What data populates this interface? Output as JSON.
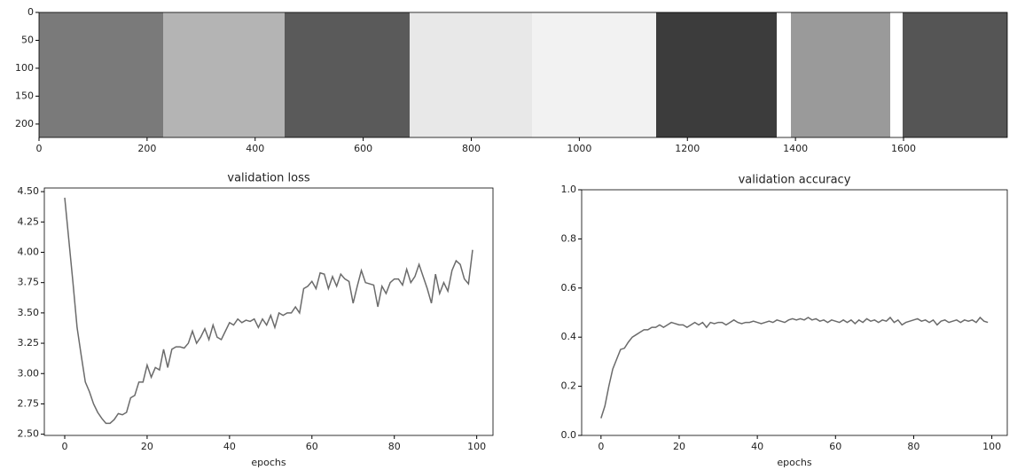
{
  "chart_data": [
    {
      "type": "image",
      "xlim": [
        0,
        1792
      ],
      "ylim": [
        224,
        0
      ],
      "xticks": [
        0,
        200,
        400,
        600,
        800,
        1000,
        1200,
        1400,
        1600
      ],
      "yticks": [
        0,
        50,
        100,
        150,
        200
      ]
    },
    {
      "type": "line",
      "title": "validation loss",
      "xlabel": "epochs",
      "color": "#6b6b6b",
      "x": [
        0,
        1,
        2,
        3,
        4,
        5,
        6,
        7,
        8,
        9,
        10,
        11,
        12,
        13,
        14,
        15,
        16,
        17,
        18,
        19,
        20,
        21,
        22,
        23,
        24,
        25,
        26,
        27,
        28,
        29,
        30,
        31,
        32,
        33,
        34,
        35,
        36,
        37,
        38,
        39,
        40,
        41,
        42,
        43,
        44,
        45,
        46,
        47,
        48,
        49,
        50,
        51,
        52,
        53,
        54,
        55,
        56,
        57,
        58,
        59,
        60,
        61,
        62,
        63,
        64,
        65,
        66,
        67,
        68,
        69,
        70,
        71,
        72,
        73,
        74,
        75,
        76,
        77,
        78,
        79,
        80,
        81,
        82,
        83,
        84,
        85,
        86,
        87,
        88,
        89,
        90,
        91,
        92,
        93,
        94,
        95,
        96,
        97,
        98,
        99
      ],
      "values": [
        4.45,
        4.1,
        3.75,
        3.38,
        3.15,
        2.93,
        2.85,
        2.75,
        2.68,
        2.63,
        2.59,
        2.59,
        2.62,
        2.67,
        2.66,
        2.68,
        2.8,
        2.82,
        2.93,
        2.93,
        3.07,
        2.97,
        3.05,
        3.03,
        3.2,
        3.05,
        3.2,
        3.22,
        3.22,
        3.21,
        3.25,
        3.35,
        3.25,
        3.3,
        3.37,
        3.28,
        3.4,
        3.3,
        3.28,
        3.35,
        3.42,
        3.4,
        3.45,
        3.42,
        3.44,
        3.43,
        3.45,
        3.38,
        3.45,
        3.4,
        3.48,
        3.38,
        3.5,
        3.48,
        3.5,
        3.5,
        3.55,
        3.5,
        3.7,
        3.72,
        3.76,
        3.7,
        3.83,
        3.82,
        3.7,
        3.8,
        3.72,
        3.82,
        3.78,
        3.76,
        3.58,
        3.72,
        3.85,
        3.75,
        3.74,
        3.73,
        3.55,
        3.72,
        3.66,
        3.75,
        3.78,
        3.78,
        3.73,
        3.86,
        3.75,
        3.8,
        3.9,
        3.8,
        3.7,
        3.58,
        3.82,
        3.66,
        3.75,
        3.68,
        3.85,
        3.93,
        3.9,
        3.78,
        3.74,
        4.02
      ],
      "xlim": [
        -4.95,
        103.95
      ],
      "xticks": [
        0,
        20,
        40,
        60,
        80,
        100
      ],
      "ylim": [
        2.49,
        4.53
      ],
      "yticks": [
        {
          "value": 2.5,
          "label": "2.50"
        },
        2.75,
        {
          "value": 3,
          "label": "3.00"
        },
        3.25,
        {
          "value": 3.5,
          "label": "3.50"
        },
        3.75,
        {
          "value": 4,
          "label": "4.00"
        },
        4.25,
        {
          "value": 4.5,
          "label": "4.50"
        }
      ]
    },
    {
      "type": "line",
      "title": "validation accuracy",
      "xlabel": "epochs",
      "color": "#6b6b6b",
      "x": [
        0,
        1,
        2,
        3,
        4,
        5,
        6,
        7,
        8,
        9,
        10,
        11,
        12,
        13,
        14,
        15,
        16,
        17,
        18,
        19,
        20,
        21,
        22,
        23,
        24,
        25,
        26,
        27,
        28,
        29,
        30,
        31,
        32,
        33,
        34,
        35,
        36,
        37,
        38,
        39,
        40,
        41,
        42,
        43,
        44,
        45,
        46,
        47,
        48,
        49,
        50,
        51,
        52,
        53,
        54,
        55,
        56,
        57,
        58,
        59,
        60,
        61,
        62,
        63,
        64,
        65,
        66,
        67,
        68,
        69,
        70,
        71,
        72,
        73,
        74,
        75,
        76,
        77,
        78,
        79,
        80,
        81,
        82,
        83,
        84,
        85,
        86,
        87,
        88,
        89,
        90,
        91,
        92,
        93,
        94,
        95,
        96,
        97,
        98,
        99
      ],
      "values": [
        0.07,
        0.12,
        0.2,
        0.27,
        0.31,
        0.35,
        0.355,
        0.38,
        0.4,
        0.41,
        0.42,
        0.43,
        0.43,
        0.44,
        0.44,
        0.45,
        0.44,
        0.45,
        0.46,
        0.455,
        0.45,
        0.45,
        0.44,
        0.45,
        0.46,
        0.45,
        0.46,
        0.44,
        0.46,
        0.455,
        0.46,
        0.46,
        0.45,
        0.46,
        0.47,
        0.46,
        0.455,
        0.46,
        0.46,
        0.465,
        0.46,
        0.455,
        0.46,
        0.465,
        0.46,
        0.47,
        0.465,
        0.46,
        0.47,
        0.475,
        0.47,
        0.475,
        0.47,
        0.48,
        0.47,
        0.475,
        0.465,
        0.47,
        0.46,
        0.47,
        0.465,
        0.46,
        0.47,
        0.46,
        0.47,
        0.455,
        0.47,
        0.46,
        0.475,
        0.465,
        0.47,
        0.46,
        0.47,
        0.465,
        0.48,
        0.46,
        0.47,
        0.45,
        0.46,
        0.465,
        0.47,
        0.475,
        0.465,
        0.47,
        0.46,
        0.47,
        0.45,
        0.465,
        0.47,
        0.46,
        0.465,
        0.47,
        0.46,
        0.47,
        0.465,
        0.47,
        0.46,
        0.48,
        0.465,
        0.46
      ],
      "xlim": [
        -4.95,
        103.95
      ],
      "xticks": [
        0,
        20,
        40,
        60,
        80,
        100
      ],
      "ylim": [
        0,
        1
      ],
      "yticks": [
        {
          "value": 0,
          "label": "0.0"
        },
        0.2,
        0.4,
        0.6,
        0.8,
        {
          "value": 1,
          "label": "1.0"
        }
      ]
    }
  ]
}
